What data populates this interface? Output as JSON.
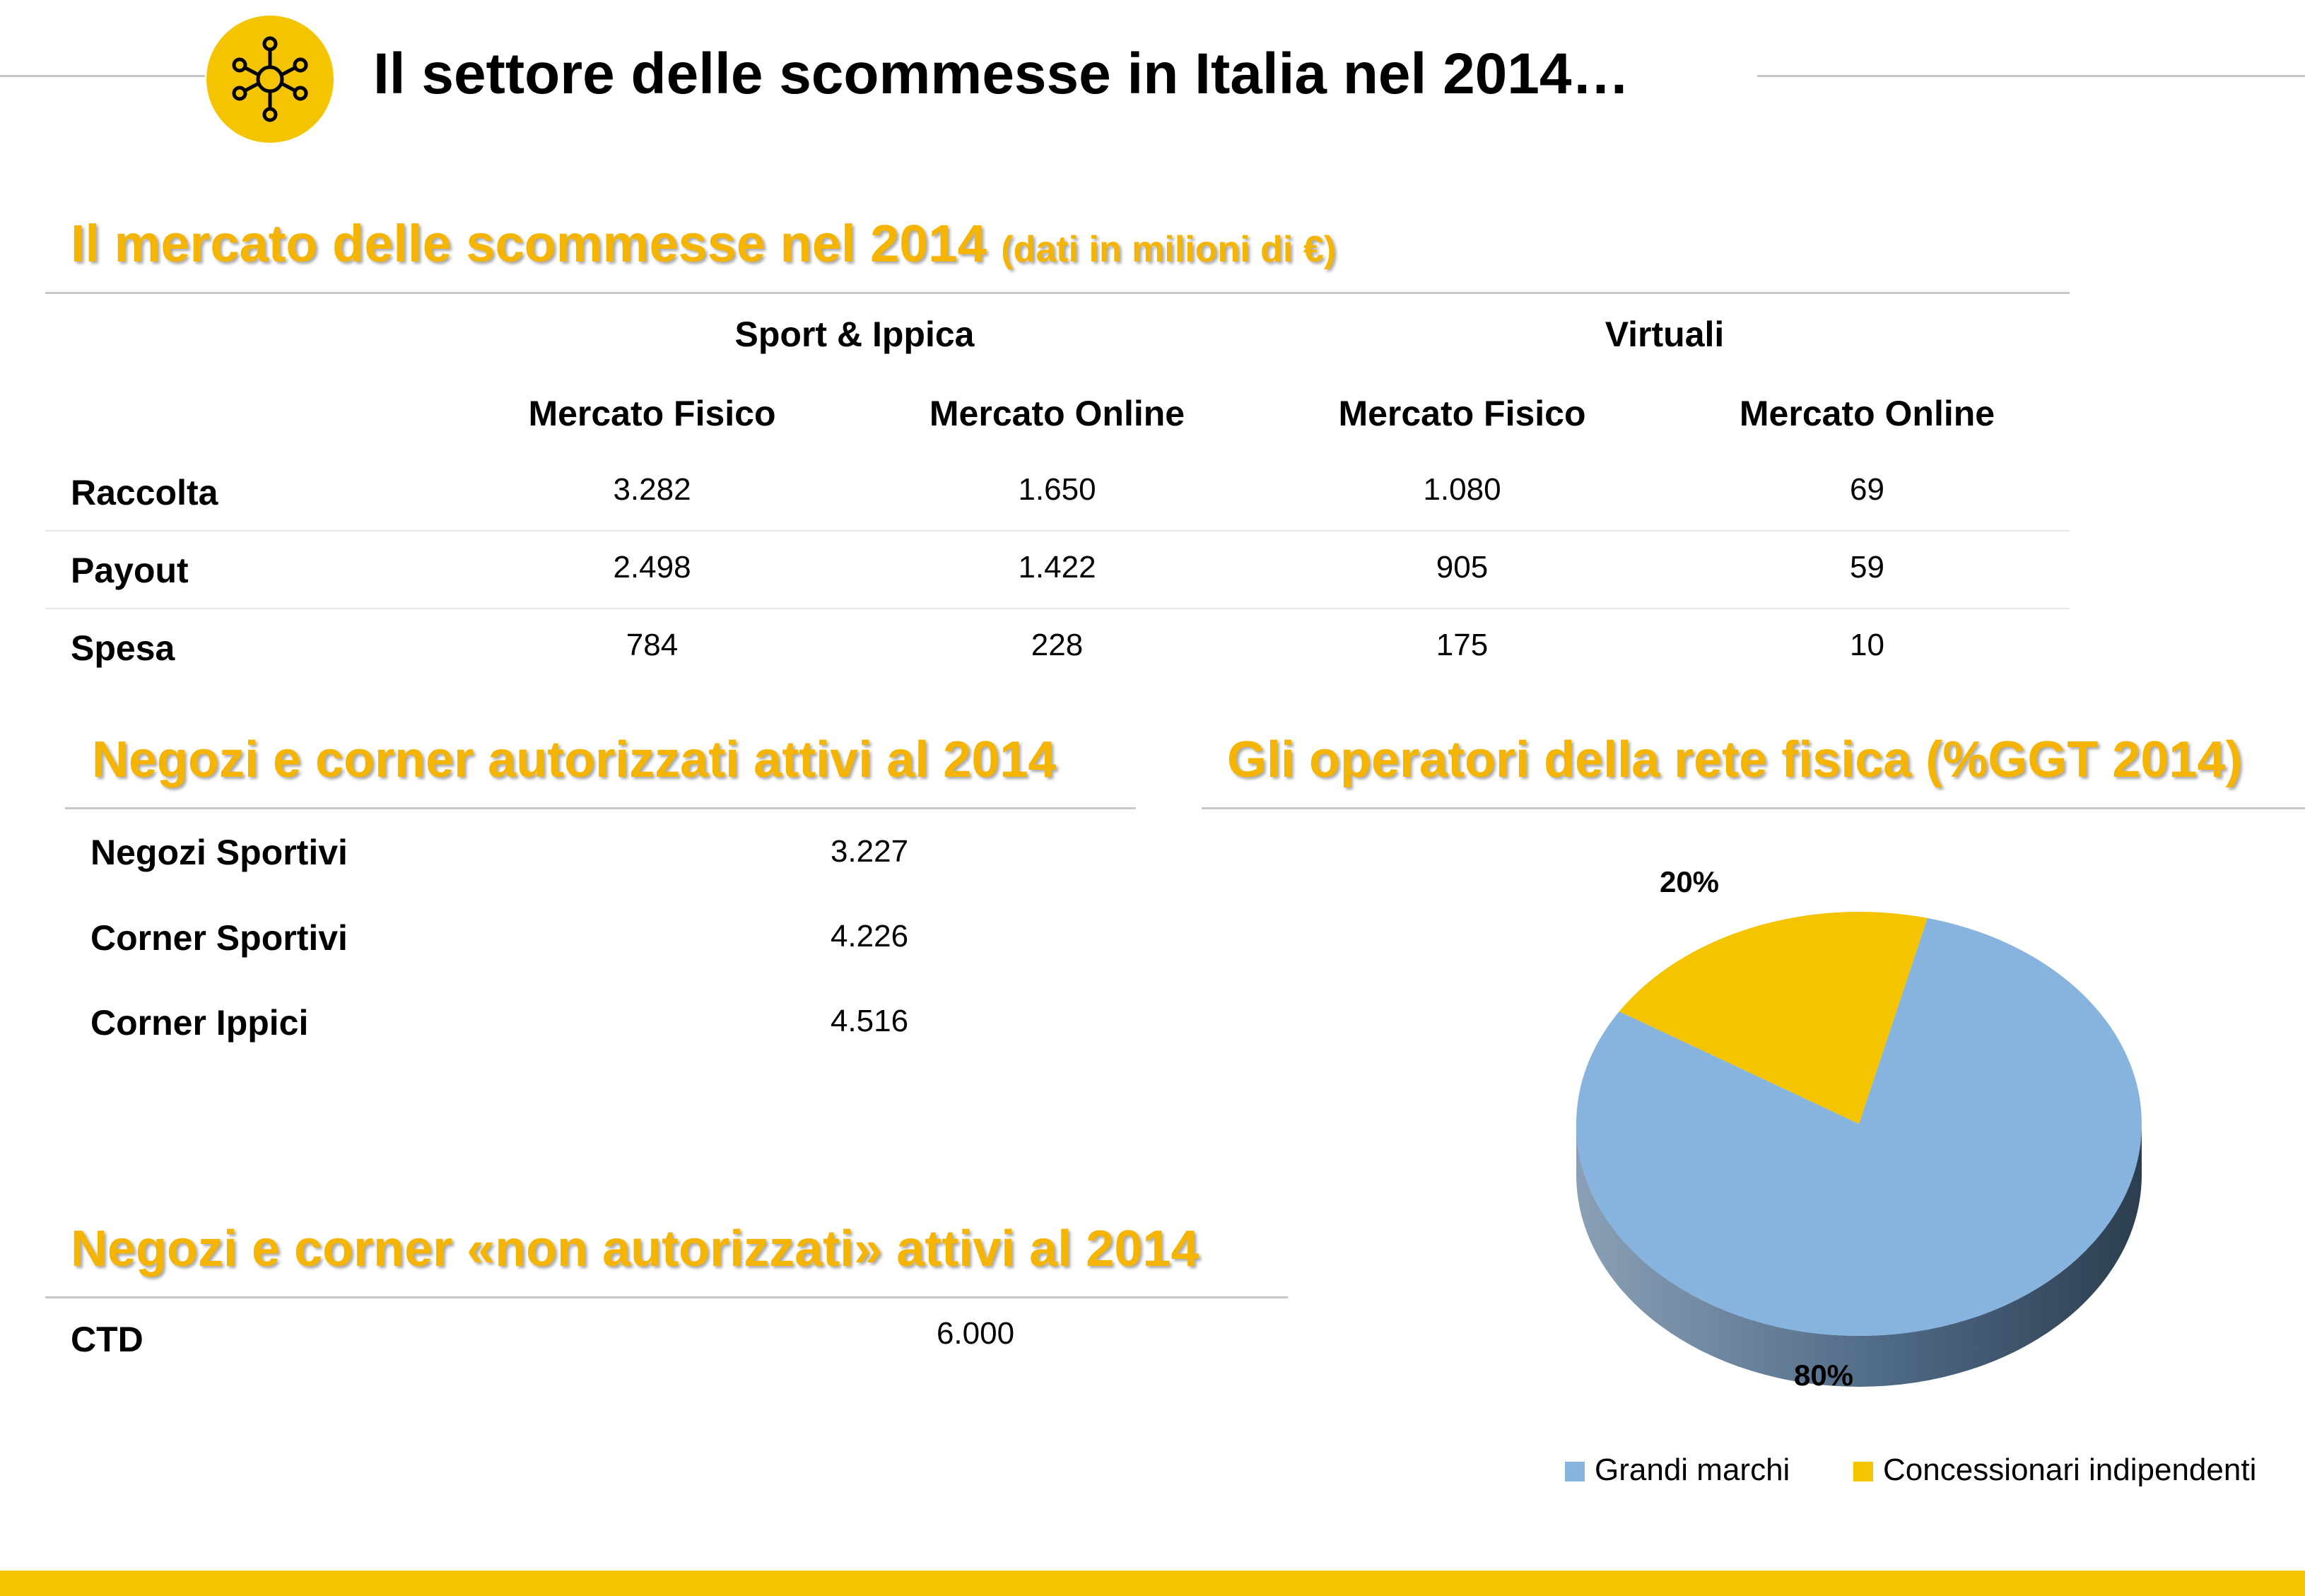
{
  "header": {
    "title": "Il settore delle scommesse in Italia nel 2014…",
    "icon": "network-icon",
    "accent": "#F5C400"
  },
  "market": {
    "title": "Il mercato delle scommesse nel 2014",
    "title_note": "(dati in milioni di €)",
    "groups": [
      "Sport & Ippica",
      "Virtuali"
    ],
    "columns": [
      "Mercato Fisico",
      "Mercato Online",
      "Mercato Fisico",
      "Mercato Online"
    ],
    "rows": [
      {
        "label": "Raccolta",
        "values": [
          "3.282",
          "1.650",
          "1.080",
          "69"
        ]
      },
      {
        "label": "Payout",
        "values": [
          "2.498",
          "1.422",
          "905",
          "59"
        ]
      },
      {
        "label": "Spesa",
        "values": [
          "784",
          "228",
          "175",
          "10"
        ]
      }
    ]
  },
  "authorized": {
    "title": "Negozi e corner autorizzati attivi al 2014",
    "rows": [
      {
        "label": "Negozi Sportivi",
        "value": "3.227"
      },
      {
        "label": "Corner Sportivi",
        "value": "4.226"
      },
      {
        "label": "Corner Ippici",
        "value": "4.516"
      }
    ]
  },
  "unauthorized": {
    "title": "Negozi e corner «non autorizzati» attivi al 2014",
    "rows": [
      {
        "label": "CTD",
        "value": "6.000"
      }
    ]
  },
  "operators": {
    "title": "Gli operatori della rete fisica (%GGT 2014)"
  },
  "chart_data": {
    "type": "pie",
    "title": "Gli operatori della rete fisica (%GGT 2014)",
    "categories": [
      "Grandi marchi",
      "Concessionari indipendenti"
    ],
    "values": [
      80,
      20
    ],
    "data_labels": [
      "80%",
      "20%"
    ],
    "colors": [
      "#86B4DE",
      "#F5C400"
    ],
    "legend": "bottom",
    "style": "3d"
  },
  "colors": {
    "section_title": "#F5B400",
    "divider": "#C8C8C8",
    "bottom_bar": "#F5C400"
  }
}
